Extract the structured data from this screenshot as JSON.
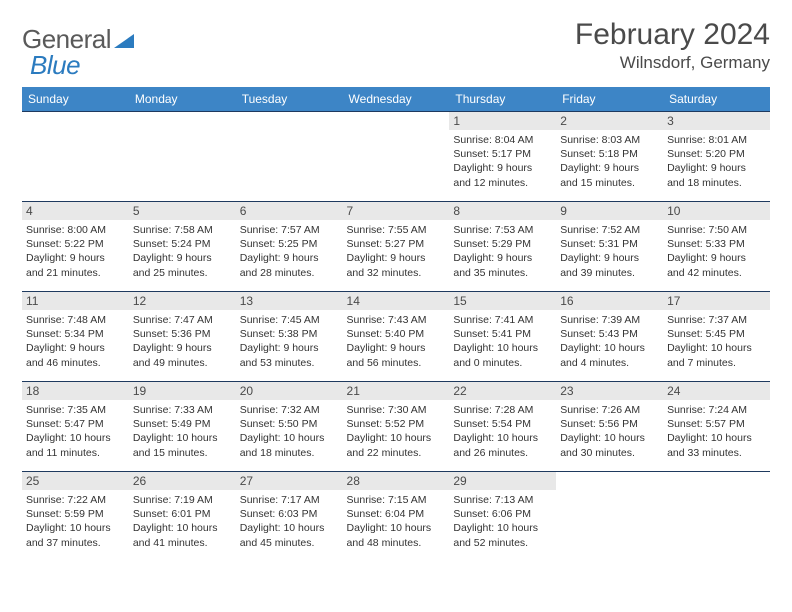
{
  "logo": {
    "part1": "General",
    "part2": "Blue"
  },
  "title": {
    "month": "February 2024",
    "location": "Wilnsdorf, Germany"
  },
  "colors": {
    "header_bg": "#3d85c6",
    "row_border": "#1f3a5f",
    "daynum_bg": "#e8e8e8",
    "logo_gray": "#5a5a5a",
    "logo_blue": "#2b7bbf",
    "text": "#333333"
  },
  "typography": {
    "title_fontsize": 30,
    "location_fontsize": 17,
    "dayhead_fontsize": 12,
    "daynum_fontsize": 12,
    "body_fontsize": 10.5
  },
  "day_headers": [
    "Sunday",
    "Monday",
    "Tuesday",
    "Wednesday",
    "Thursday",
    "Friday",
    "Saturday"
  ],
  "weeks": [
    [
      {
        "blank": true
      },
      {
        "blank": true
      },
      {
        "blank": true
      },
      {
        "blank": true
      },
      {
        "num": "1",
        "sunrise": "Sunrise: 8:04 AM",
        "sunset": "Sunset: 5:17 PM",
        "daylight1": "Daylight: 9 hours",
        "daylight2": "and 12 minutes."
      },
      {
        "num": "2",
        "sunrise": "Sunrise: 8:03 AM",
        "sunset": "Sunset: 5:18 PM",
        "daylight1": "Daylight: 9 hours",
        "daylight2": "and 15 minutes."
      },
      {
        "num": "3",
        "sunrise": "Sunrise: 8:01 AM",
        "sunset": "Sunset: 5:20 PM",
        "daylight1": "Daylight: 9 hours",
        "daylight2": "and 18 minutes."
      }
    ],
    [
      {
        "num": "4",
        "sunrise": "Sunrise: 8:00 AM",
        "sunset": "Sunset: 5:22 PM",
        "daylight1": "Daylight: 9 hours",
        "daylight2": "and 21 minutes."
      },
      {
        "num": "5",
        "sunrise": "Sunrise: 7:58 AM",
        "sunset": "Sunset: 5:24 PM",
        "daylight1": "Daylight: 9 hours",
        "daylight2": "and 25 minutes."
      },
      {
        "num": "6",
        "sunrise": "Sunrise: 7:57 AM",
        "sunset": "Sunset: 5:25 PM",
        "daylight1": "Daylight: 9 hours",
        "daylight2": "and 28 minutes."
      },
      {
        "num": "7",
        "sunrise": "Sunrise: 7:55 AM",
        "sunset": "Sunset: 5:27 PM",
        "daylight1": "Daylight: 9 hours",
        "daylight2": "and 32 minutes."
      },
      {
        "num": "8",
        "sunrise": "Sunrise: 7:53 AM",
        "sunset": "Sunset: 5:29 PM",
        "daylight1": "Daylight: 9 hours",
        "daylight2": "and 35 minutes."
      },
      {
        "num": "9",
        "sunrise": "Sunrise: 7:52 AM",
        "sunset": "Sunset: 5:31 PM",
        "daylight1": "Daylight: 9 hours",
        "daylight2": "and 39 minutes."
      },
      {
        "num": "10",
        "sunrise": "Sunrise: 7:50 AM",
        "sunset": "Sunset: 5:33 PM",
        "daylight1": "Daylight: 9 hours",
        "daylight2": "and 42 minutes."
      }
    ],
    [
      {
        "num": "11",
        "sunrise": "Sunrise: 7:48 AM",
        "sunset": "Sunset: 5:34 PM",
        "daylight1": "Daylight: 9 hours",
        "daylight2": "and 46 minutes."
      },
      {
        "num": "12",
        "sunrise": "Sunrise: 7:47 AM",
        "sunset": "Sunset: 5:36 PM",
        "daylight1": "Daylight: 9 hours",
        "daylight2": "and 49 minutes."
      },
      {
        "num": "13",
        "sunrise": "Sunrise: 7:45 AM",
        "sunset": "Sunset: 5:38 PM",
        "daylight1": "Daylight: 9 hours",
        "daylight2": "and 53 minutes."
      },
      {
        "num": "14",
        "sunrise": "Sunrise: 7:43 AM",
        "sunset": "Sunset: 5:40 PM",
        "daylight1": "Daylight: 9 hours",
        "daylight2": "and 56 minutes."
      },
      {
        "num": "15",
        "sunrise": "Sunrise: 7:41 AM",
        "sunset": "Sunset: 5:41 PM",
        "daylight1": "Daylight: 10 hours",
        "daylight2": "and 0 minutes."
      },
      {
        "num": "16",
        "sunrise": "Sunrise: 7:39 AM",
        "sunset": "Sunset: 5:43 PM",
        "daylight1": "Daylight: 10 hours",
        "daylight2": "and 4 minutes."
      },
      {
        "num": "17",
        "sunrise": "Sunrise: 7:37 AM",
        "sunset": "Sunset: 5:45 PM",
        "daylight1": "Daylight: 10 hours",
        "daylight2": "and 7 minutes."
      }
    ],
    [
      {
        "num": "18",
        "sunrise": "Sunrise: 7:35 AM",
        "sunset": "Sunset: 5:47 PM",
        "daylight1": "Daylight: 10 hours",
        "daylight2": "and 11 minutes."
      },
      {
        "num": "19",
        "sunrise": "Sunrise: 7:33 AM",
        "sunset": "Sunset: 5:49 PM",
        "daylight1": "Daylight: 10 hours",
        "daylight2": "and 15 minutes."
      },
      {
        "num": "20",
        "sunrise": "Sunrise: 7:32 AM",
        "sunset": "Sunset: 5:50 PM",
        "daylight1": "Daylight: 10 hours",
        "daylight2": "and 18 minutes."
      },
      {
        "num": "21",
        "sunrise": "Sunrise: 7:30 AM",
        "sunset": "Sunset: 5:52 PM",
        "daylight1": "Daylight: 10 hours",
        "daylight2": "and 22 minutes."
      },
      {
        "num": "22",
        "sunrise": "Sunrise: 7:28 AM",
        "sunset": "Sunset: 5:54 PM",
        "daylight1": "Daylight: 10 hours",
        "daylight2": "and 26 minutes."
      },
      {
        "num": "23",
        "sunrise": "Sunrise: 7:26 AM",
        "sunset": "Sunset: 5:56 PM",
        "daylight1": "Daylight: 10 hours",
        "daylight2": "and 30 minutes."
      },
      {
        "num": "24",
        "sunrise": "Sunrise: 7:24 AM",
        "sunset": "Sunset: 5:57 PM",
        "daylight1": "Daylight: 10 hours",
        "daylight2": "and 33 minutes."
      }
    ],
    [
      {
        "num": "25",
        "sunrise": "Sunrise: 7:22 AM",
        "sunset": "Sunset: 5:59 PM",
        "daylight1": "Daylight: 10 hours",
        "daylight2": "and 37 minutes."
      },
      {
        "num": "26",
        "sunrise": "Sunrise: 7:19 AM",
        "sunset": "Sunset: 6:01 PM",
        "daylight1": "Daylight: 10 hours",
        "daylight2": "and 41 minutes."
      },
      {
        "num": "27",
        "sunrise": "Sunrise: 7:17 AM",
        "sunset": "Sunset: 6:03 PM",
        "daylight1": "Daylight: 10 hours",
        "daylight2": "and 45 minutes."
      },
      {
        "num": "28",
        "sunrise": "Sunrise: 7:15 AM",
        "sunset": "Sunset: 6:04 PM",
        "daylight1": "Daylight: 10 hours",
        "daylight2": "and 48 minutes."
      },
      {
        "num": "29",
        "sunrise": "Sunrise: 7:13 AM",
        "sunset": "Sunset: 6:06 PM",
        "daylight1": "Daylight: 10 hours",
        "daylight2": "and 52 minutes."
      },
      {
        "blank": true
      },
      {
        "blank": true
      }
    ]
  ]
}
